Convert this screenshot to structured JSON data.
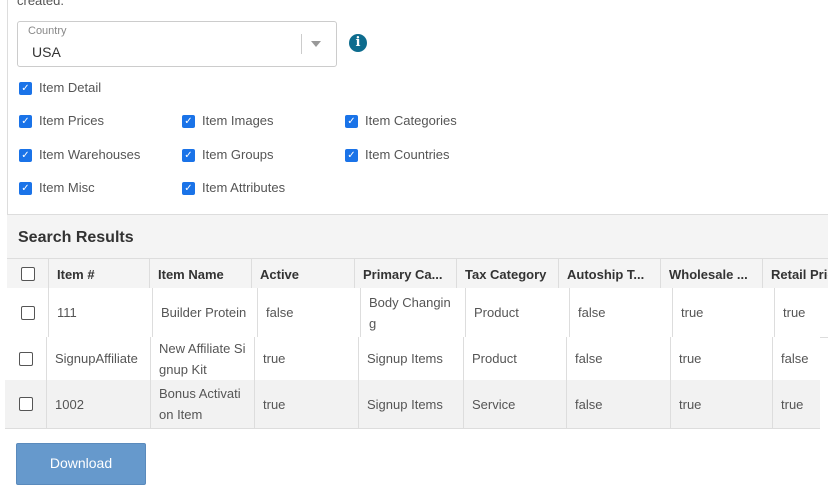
{
  "intro_text": "created.",
  "country": {
    "label": "Country",
    "value": "USA"
  },
  "info_icon": "info-circle-icon",
  "checkboxes": [
    {
      "label": "Item Detail",
      "checked": true
    },
    {
      "label": "Item Prices",
      "checked": true
    },
    {
      "label": "Item Images",
      "checked": true
    },
    {
      "label": "Item Categories",
      "checked": true
    },
    {
      "label": "Item Warehouses",
      "checked": true
    },
    {
      "label": "Item Groups",
      "checked": true
    },
    {
      "label": "Item Countries",
      "checked": true
    },
    {
      "label": "Item Misc",
      "checked": true
    },
    {
      "label": "Item Attributes",
      "checked": true
    }
  ],
  "results": {
    "title": "Search Results",
    "columns": [
      "Item #",
      "Item Name",
      "Active",
      "Primary Ca...",
      "Tax Category",
      "Autoship T...",
      "Wholesale ...",
      "Retail Pric"
    ],
    "rows": [
      [
        "111",
        "Builder Protein",
        "false",
        "Body Changing",
        "Product",
        "false",
        "true",
        "true"
      ],
      [
        "SignupAffiliate",
        "New Affiliate Signup Kit",
        "true",
        "Signup Items",
        "Product",
        "false",
        "true",
        "false"
      ],
      [
        "1002",
        "Bonus Activation Item",
        "true",
        "Signup Items",
        "Service",
        "false",
        "true",
        "true"
      ]
    ]
  },
  "download_label": "Download"
}
